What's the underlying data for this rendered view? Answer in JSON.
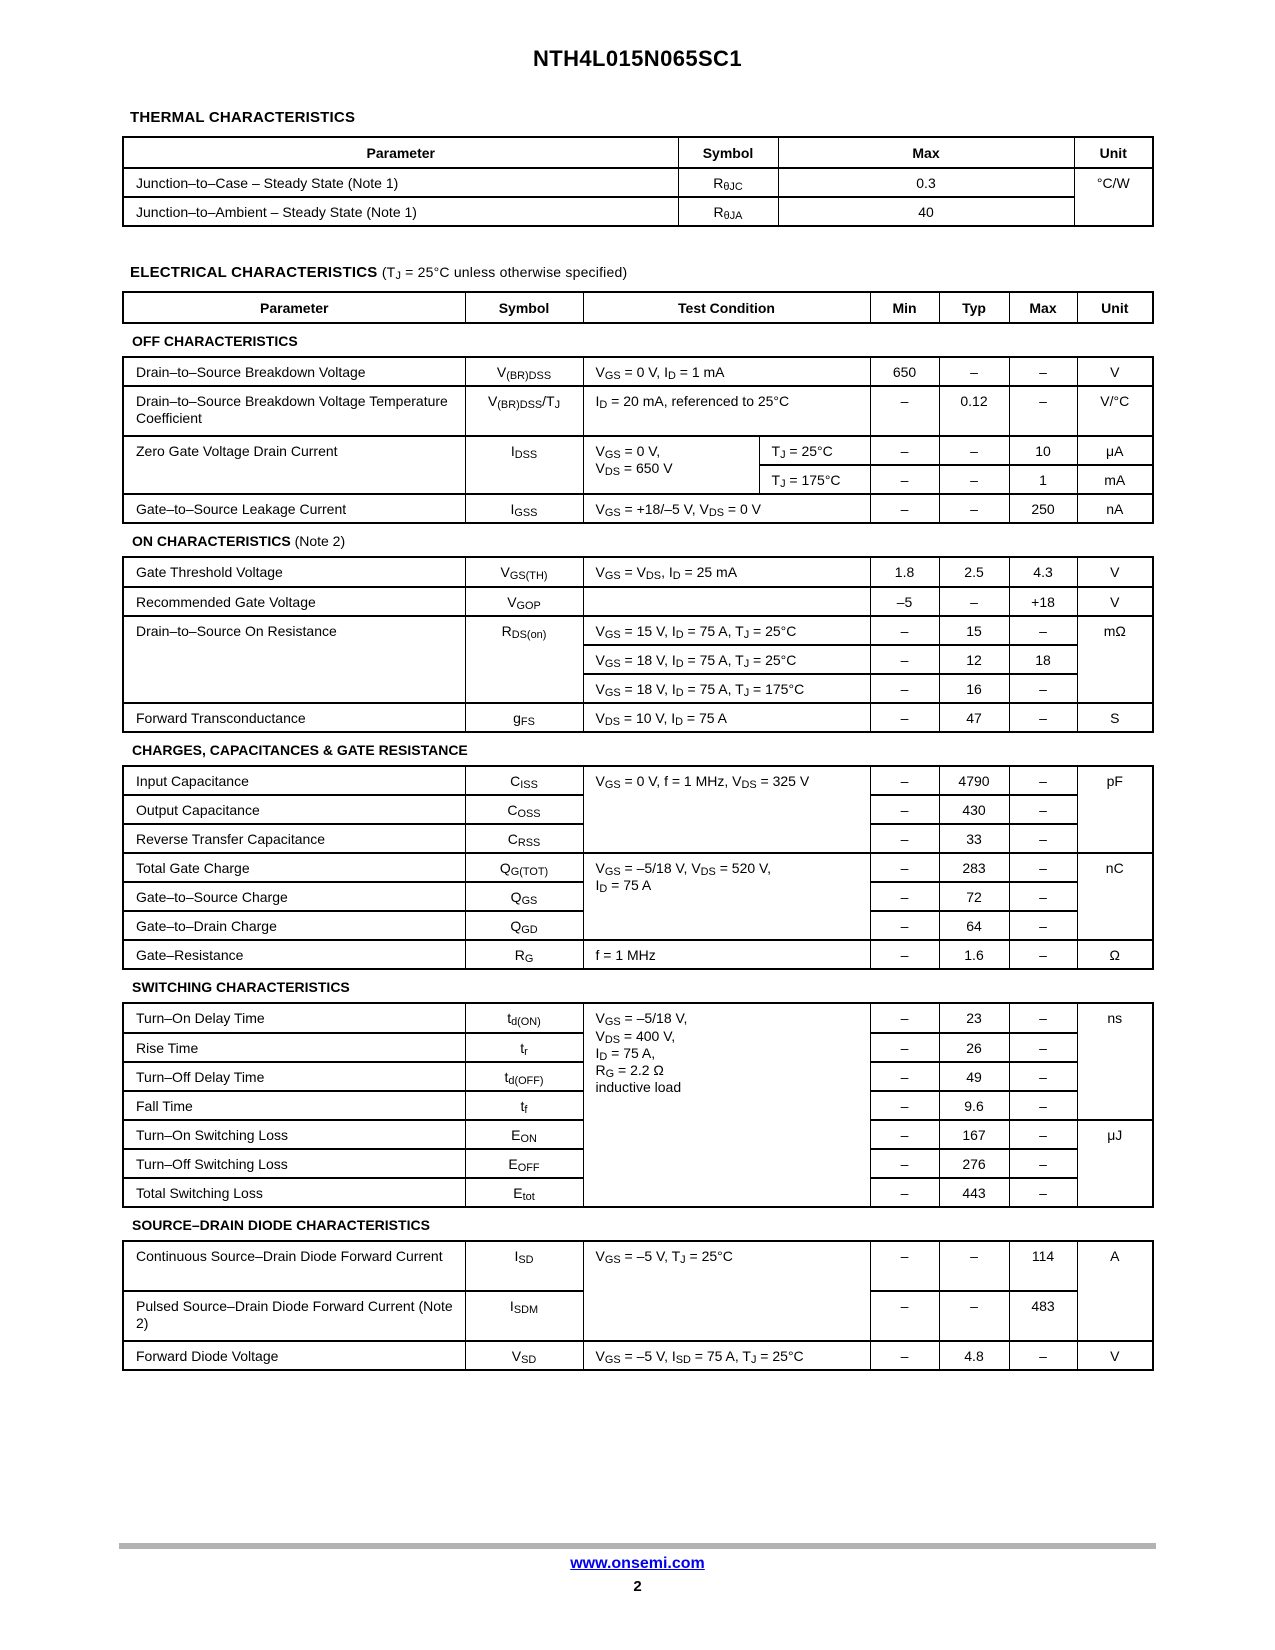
{
  "page": {
    "title": "NTH4L015N065SC1",
    "footer": {
      "url": "www.onsemi.com",
      "page_number": "2"
    }
  },
  "colors": {
    "link": "#0000EE",
    "footer_bar": "#B3B3B3"
  },
  "thermal": {
    "heading": "THERMAL CHARACTERISTICS",
    "columns": {
      "parameter": "Parameter",
      "symbol": "Symbol",
      "max": "Max",
      "unit": "Unit"
    },
    "rows": {
      "rjc": {
        "parameter": "Junction–to–Case – Steady State (Note 1)",
        "symbol": "R_{θJC}",
        "max": "0.3",
        "unit": "°C/W"
      },
      "rja": {
        "parameter": "Junction–to–Ambient – Steady State (Note 1)",
        "symbol": "R_{θJA}",
        "max": "40"
      }
    }
  },
  "electrical": {
    "heading_bold": "ELECTRICAL CHARACTERISTICS",
    "heading_note": "(T_{J} = 25°C unless otherwise specified)",
    "columns": {
      "parameter": "Parameter",
      "symbol": "Symbol",
      "condition": "Test Condition",
      "min": "Min",
      "typ": "Typ",
      "max": "Max",
      "unit": "Unit"
    },
    "off": {
      "heading": "OFF CHARACTERISTICS",
      "note": "",
      "rows": {
        "vbrdss": {
          "parameter": "Drain–to–Source Breakdown Voltage",
          "symbol": "V_{(BR)DSS}",
          "condition": "V_{GS} = 0 V, I_{D} = 1 mA",
          "min": "650",
          "typ": "–",
          "max": "–",
          "unit": "V"
        },
        "vbrdss_tc": {
          "parameter": "Drain–to–Source Breakdown Voltage Temperature Coefficient",
          "symbol": "V_{(BR)DSS}/T_{J}",
          "condition": "I_{D} = 20 mA, referenced to 25°C",
          "min": "–",
          "typ": "0.12",
          "max": "–",
          "unit": "V/°C"
        },
        "idss": {
          "parameter": "Zero Gate Voltage Drain Current",
          "symbol": "I_{DSS}",
          "condition": "V_{GS} = 0 V,\nV_{DS} = 650 V",
          "at_25": {
            "condition2": "T_{J} = 25°C",
            "min": "–",
            "typ": "–",
            "max": "10",
            "unit": "μA"
          },
          "at_175": {
            "condition2": "T_{J} = 175°C",
            "min": "–",
            "typ": "–",
            "max": "1",
            "unit": "mA"
          }
        },
        "igss": {
          "parameter": "Gate–to–Source Leakage Current",
          "symbol": "I_{GSS}",
          "condition": "V_{GS} = +18/–5 V, V_{DS} = 0 V",
          "min": "–",
          "typ": "–",
          "max": "250",
          "unit": "nA"
        }
      }
    },
    "on": {
      "heading": "ON CHARACTERISTICS",
      "note": "(Note 2)",
      "rows": {
        "vgsth": {
          "parameter": "Gate Threshold Voltage",
          "symbol": "V_{GS(TH)}",
          "condition": "V_{GS} = V_{DS}, I_{D} = 25 mA",
          "min": "1.8",
          "typ": "2.5",
          "max": "4.3",
          "unit": "V"
        },
        "vgop": {
          "parameter": "Recommended Gate Voltage",
          "symbol": "V_{GOP}",
          "condition": "",
          "min": "–5",
          "typ": "–",
          "max": "+18",
          "unit": "V"
        },
        "rdson": {
          "parameter": "Drain–to–Source On Resistance",
          "symbol": "R_{DS(on)}",
          "unit": "mΩ",
          "c15_25": {
            "condition": "V_{GS} = 15 V, I_{D} = 75 A, T_{J} = 25°C",
            "min": "–",
            "typ": "15",
            "max": "–"
          },
          "c18_25": {
            "condition": "V_{GS} = 18 V, I_{D} = 75 A, T_{J} = 25°C",
            "min": "–",
            "typ": "12",
            "max": "18"
          },
          "c18_175": {
            "condition": "V_{GS} = 18 V, I_{D} = 75 A, T_{J} = 175°C",
            "min": "–",
            "typ": "16",
            "max": "–"
          }
        },
        "gfs": {
          "parameter": "Forward Transconductance",
          "symbol": "g_{FS}",
          "condition": "V_{DS} = 10 V, I_{D} = 75 A",
          "min": "–",
          "typ": "47",
          "max": "–",
          "unit": "S"
        }
      }
    },
    "charges": {
      "heading": "CHARGES, CAPACITANCES & GATE RESISTANCE",
      "note": "",
      "cap_condition": "V_{GS} = 0 V, f = 1 MHz, V_{DS} = 325 V",
      "charge_condition": "V_{GS} = –5/18 V, V_{DS} = 520 V,\nI_{D} = 75 A",
      "rows": {
        "ciss": {
          "parameter": "Input Capacitance",
          "symbol": "C_{ISS}",
          "min": "–",
          "typ": "4790",
          "max": "–",
          "unit": "pF"
        },
        "coss": {
          "parameter": "Output Capacitance",
          "symbol": "C_{OSS}",
          "min": "–",
          "typ": "430",
          "max": "–"
        },
        "crss": {
          "parameter": "Reverse Transfer Capacitance",
          "symbol": "C_{RSS}",
          "min": "–",
          "typ": "33",
          "max": "–"
        },
        "qgtot": {
          "parameter": "Total Gate Charge",
          "symbol": "Q_{G(TOT)}",
          "min": "–",
          "typ": "283",
          "max": "–",
          "unit": "nC"
        },
        "qgs": {
          "parameter": "Gate–to–Source Charge",
          "symbol": "Q_{GS}",
          "min": "–",
          "typ": "72",
          "max": "–"
        },
        "qgd": {
          "parameter": "Gate–to–Drain Charge",
          "symbol": "Q_{GD}",
          "min": "–",
          "typ": "64",
          "max": "–"
        },
        "rg": {
          "parameter": "Gate–Resistance",
          "symbol": "R_{G}",
          "condition": "f = 1 MHz",
          "min": "–",
          "typ": "1.6",
          "max": "–",
          "unit": "Ω"
        }
      }
    },
    "switching": {
      "heading": "SWITCHING CHARACTERISTICS",
      "note": "",
      "condition": "V_{GS} = –5/18 V,\nV_{DS} = 400 V,\nI_{D} = 75 A,\nR_{G} = 2.2 Ω\ninductive load",
      "rows": {
        "tdon": {
          "parameter": "Turn–On Delay Time",
          "symbol": "t_{d(ON)}",
          "min": "–",
          "typ": "23",
          "max": "–",
          "unit": "ns"
        },
        "tr": {
          "parameter": "Rise Time",
          "symbol": "t_{r}",
          "min": "–",
          "typ": "26",
          "max": "–"
        },
        "tdoff": {
          "parameter": "Turn–Off Delay Time",
          "symbol": "t_{d(OFF)}",
          "min": "–",
          "typ": "49",
          "max": "–"
        },
        "tf": {
          "parameter": "Fall Time",
          "symbol": "t_{f}",
          "min": "–",
          "typ": "9.6",
          "max": "–"
        },
        "eon": {
          "parameter": "Turn–On Switching Loss",
          "symbol": "E_{ON}",
          "min": "–",
          "typ": "167",
          "max": "–",
          "unit": "μJ"
        },
        "eoff": {
          "parameter": "Turn–Off Switching Loss",
          "symbol": "E_{OFF}",
          "min": "–",
          "typ": "276",
          "max": "–"
        },
        "etot": {
          "parameter": "Total Switching Loss",
          "symbol": "E_{tot}",
          "min": "–",
          "typ": "443",
          "max": "–"
        }
      }
    },
    "diode": {
      "heading": "SOURCE–DRAIN DIODE CHARACTERISTICS",
      "note": "",
      "condition": "V_{GS} = –5 V, T_{J} = 25°C",
      "rows": {
        "isd": {
          "parameter": "Continuous Source–Drain Diode Forward Current",
          "symbol": "I_{SD}",
          "min": "–",
          "typ": "–",
          "max": "114",
          "unit": "A"
        },
        "isdm": {
          "parameter": "Pulsed Source–Drain Diode Forward Current (Note 2)",
          "symbol": "I_{SDM}",
          "min": "–",
          "typ": "–",
          "max": "483"
        },
        "vsd": {
          "parameter": "Forward Diode Voltage",
          "symbol": "V_{SD}",
          "condition": "V_{GS} = –5 V, I_{SD} = 75 A, T_{J} = 25°C",
          "min": "–",
          "typ": "4.8",
          "max": "–",
          "unit": "V"
        }
      }
    }
  }
}
